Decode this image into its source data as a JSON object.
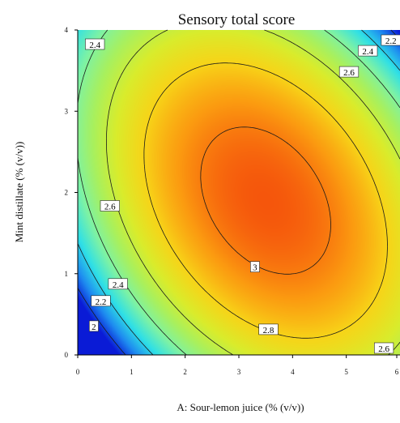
{
  "chart_data": {
    "type": "heatmap",
    "title": "Sensory total score",
    "xlabel": "A: Sour-lemon juice (% (v/v))",
    "ylabel": "Mint distillate (% (v/v))",
    "xlim": [
      0,
      6
    ],
    "ylim": [
      0,
      4
    ],
    "x_ticks": [
      "0",
      "1",
      "2",
      "3",
      "4",
      "5",
      "6"
    ],
    "y_ticks": [
      "0",
      "1",
      "2",
      "3",
      "4"
    ],
    "surface_optimum": {
      "x": 3.5,
      "y": 1.9,
      "value": 3.08
    },
    "colormap": [
      "#0a1bd6",
      "#1e8cf0",
      "#2fe0e6",
      "#7cf2a6",
      "#a8f05e",
      "#d9ec2c",
      "#f7d418",
      "#fb9a10",
      "#f5560c"
    ],
    "contour_levels": [
      2.0,
      2.2,
      2.4,
      2.6,
      2.8,
      3.0
    ],
    "contour_labels": [
      {
        "text": "2.4",
        "x": 0.32,
        "y": 3.82
      },
      {
        "text": "2.2",
        "x": 5.83,
        "y": 3.87
      },
      {
        "text": "2.4",
        "x": 5.4,
        "y": 3.74
      },
      {
        "text": "2.6",
        "x": 5.05,
        "y": 3.48
      },
      {
        "text": "2.6",
        "x": 0.6,
        "y": 1.83
      },
      {
        "text": "3",
        "x": 3.3,
        "y": 1.08
      },
      {
        "text": "2.4",
        "x": 0.75,
        "y": 0.87
      },
      {
        "text": "2.2",
        "x": 0.43,
        "y": 0.66
      },
      {
        "text": "2",
        "x": 0.3,
        "y": 0.35
      },
      {
        "text": "2.8",
        "x": 3.55,
        "y": 0.31
      },
      {
        "text": "2.6",
        "x": 5.7,
        "y": 0.08
      }
    ]
  }
}
